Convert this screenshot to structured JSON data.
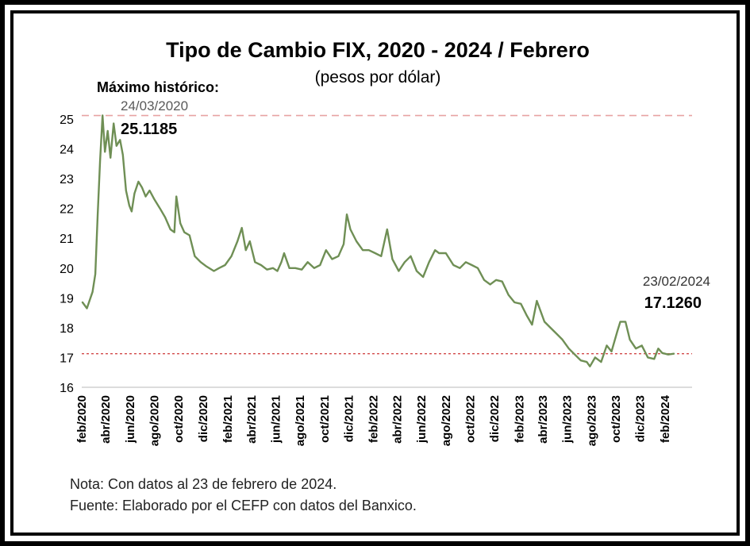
{
  "colors": {
    "frame": "#000000",
    "series": "#6f8f55",
    "max_line": "#e8a3a3",
    "current_line": "#d24a4a",
    "axis": "#b8b8b8",
    "text": "#000000",
    "date_text": "#5a5a5a"
  },
  "chart_data": {
    "type": "line",
    "title": "Tipo de Cambio FIX, 2020 - 2024 / Febrero",
    "subtitle": "(pesos por dólar)",
    "ylim": [
      16,
      25
    ],
    "y_ticks": [
      "16",
      "17",
      "18",
      "19",
      "20",
      "21",
      "22",
      "23",
      "24",
      "25"
    ],
    "x_range": [
      "2020-02-01",
      "2024-02-29"
    ],
    "x_ticks": [
      {
        "date": "2020-02-01",
        "label": "feb/2020"
      },
      {
        "date": "2020-04-01",
        "label": "abr/2020"
      },
      {
        "date": "2020-06-01",
        "label": "jun/2020"
      },
      {
        "date": "2020-08-01",
        "label": "ago/2020"
      },
      {
        "date": "2020-10-01",
        "label": "oct/2020"
      },
      {
        "date": "2020-12-01",
        "label": "dic/2020"
      },
      {
        "date": "2021-02-01",
        "label": "feb/2021"
      },
      {
        "date": "2021-04-01",
        "label": "abr/2021"
      },
      {
        "date": "2021-06-01",
        "label": "jun/2021"
      },
      {
        "date": "2021-08-01",
        "label": "ago/2021"
      },
      {
        "date": "2021-10-01",
        "label": "oct/2021"
      },
      {
        "date": "2021-12-01",
        "label": "dic/2021"
      },
      {
        "date": "2022-02-01",
        "label": "feb/2022"
      },
      {
        "date": "2022-04-01",
        "label": "abr/2022"
      },
      {
        "date": "2022-06-01",
        "label": "jun/2022"
      },
      {
        "date": "2022-08-01",
        "label": "ago/2022"
      },
      {
        "date": "2022-10-01",
        "label": "oct/2022"
      },
      {
        "date": "2022-12-01",
        "label": "dic/2022"
      },
      {
        "date": "2023-02-01",
        "label": "feb/2023"
      },
      {
        "date": "2023-04-01",
        "label": "abr/2023"
      },
      {
        "date": "2023-06-01",
        "label": "jun/2023"
      },
      {
        "date": "2023-08-01",
        "label": "ago/2023"
      },
      {
        "date": "2023-10-01",
        "label": "oct/2023"
      },
      {
        "date": "2023-12-01",
        "label": "dic/2023"
      },
      {
        "date": "2024-02-01",
        "label": "feb/2024"
      }
    ],
    "grid": false,
    "series": [
      {
        "points": [
          [
            "2020-02-03",
            18.85
          ],
          [
            "2020-02-14",
            18.65
          ],
          [
            "2020-02-28",
            19.2
          ],
          [
            "2020-03-06",
            19.8
          ],
          [
            "2020-03-12",
            21.8
          ],
          [
            "2020-03-18",
            23.6
          ],
          [
            "2020-03-24",
            25.1185
          ],
          [
            "2020-03-30",
            23.9
          ],
          [
            "2020-04-06",
            24.6
          ],
          [
            "2020-04-13",
            23.7
          ],
          [
            "2020-04-21",
            24.85
          ],
          [
            "2020-04-28",
            24.1
          ],
          [
            "2020-05-07",
            24.3
          ],
          [
            "2020-05-14",
            23.8
          ],
          [
            "2020-05-22",
            22.6
          ],
          [
            "2020-05-30",
            22.1
          ],
          [
            "2020-06-05",
            21.9
          ],
          [
            "2020-06-12",
            22.5
          ],
          [
            "2020-06-22",
            22.9
          ],
          [
            "2020-07-01",
            22.7
          ],
          [
            "2020-07-10",
            22.4
          ],
          [
            "2020-07-20",
            22.6
          ],
          [
            "2020-08-01",
            22.3
          ],
          [
            "2020-08-15",
            22.0
          ],
          [
            "2020-08-28",
            21.7
          ],
          [
            "2020-09-10",
            21.3
          ],
          [
            "2020-09-20",
            21.2
          ],
          [
            "2020-09-25",
            22.4
          ],
          [
            "2020-10-05",
            21.5
          ],
          [
            "2020-10-15",
            21.2
          ],
          [
            "2020-10-28",
            21.1
          ],
          [
            "2020-11-10",
            20.4
          ],
          [
            "2020-11-25",
            20.2
          ],
          [
            "2020-12-10",
            20.05
          ],
          [
            "2020-12-28",
            19.9
          ],
          [
            "2021-01-10",
            20.0
          ],
          [
            "2021-01-25",
            20.1
          ],
          [
            "2021-02-10",
            20.4
          ],
          [
            "2021-02-25",
            20.9
          ],
          [
            "2021-03-08",
            21.35
          ],
          [
            "2021-03-18",
            20.6
          ],
          [
            "2021-03-28",
            20.9
          ],
          [
            "2021-04-10",
            20.2
          ],
          [
            "2021-04-25",
            20.1
          ],
          [
            "2021-05-10",
            19.95
          ],
          [
            "2021-05-25",
            20.0
          ],
          [
            "2021-06-05",
            19.9
          ],
          [
            "2021-06-15",
            20.2
          ],
          [
            "2021-06-22",
            20.5
          ],
          [
            "2021-07-05",
            20.0
          ],
          [
            "2021-07-20",
            20.0
          ],
          [
            "2021-08-05",
            19.95
          ],
          [
            "2021-08-20",
            20.2
          ],
          [
            "2021-09-05",
            20.0
          ],
          [
            "2021-09-20",
            20.1
          ],
          [
            "2021-10-05",
            20.6
          ],
          [
            "2021-10-20",
            20.3
          ],
          [
            "2021-11-05",
            20.4
          ],
          [
            "2021-11-18",
            20.8
          ],
          [
            "2021-11-26",
            21.8
          ],
          [
            "2021-12-05",
            21.3
          ],
          [
            "2021-12-20",
            20.9
          ],
          [
            "2022-01-05",
            20.6
          ],
          [
            "2022-01-20",
            20.6
          ],
          [
            "2022-02-05",
            20.5
          ],
          [
            "2022-02-20",
            20.4
          ],
          [
            "2022-03-07",
            21.3
          ],
          [
            "2022-03-20",
            20.3
          ],
          [
            "2022-04-05",
            19.9
          ],
          [
            "2022-04-20",
            20.2
          ],
          [
            "2022-05-05",
            20.4
          ],
          [
            "2022-05-20",
            19.9
          ],
          [
            "2022-06-05",
            19.7
          ],
          [
            "2022-06-20",
            20.2
          ],
          [
            "2022-07-05",
            20.6
          ],
          [
            "2022-07-15",
            20.5
          ],
          [
            "2022-08-01",
            20.5
          ],
          [
            "2022-08-20",
            20.1
          ],
          [
            "2022-09-05",
            20.0
          ],
          [
            "2022-09-20",
            20.2
          ],
          [
            "2022-10-05",
            20.1
          ],
          [
            "2022-10-20",
            20.0
          ],
          [
            "2022-11-05",
            19.6
          ],
          [
            "2022-11-20",
            19.45
          ],
          [
            "2022-12-05",
            19.6
          ],
          [
            "2022-12-20",
            19.55
          ],
          [
            "2023-01-05",
            19.1
          ],
          [
            "2023-01-20",
            18.85
          ],
          [
            "2023-02-05",
            18.8
          ],
          [
            "2023-02-20",
            18.4
          ],
          [
            "2023-03-05",
            18.1
          ],
          [
            "2023-03-17",
            18.9
          ],
          [
            "2023-04-05",
            18.2
          ],
          [
            "2023-04-20",
            18.0
          ],
          [
            "2023-05-05",
            17.8
          ],
          [
            "2023-05-20",
            17.6
          ],
          [
            "2023-06-05",
            17.3
          ],
          [
            "2023-06-20",
            17.1
          ],
          [
            "2023-07-05",
            16.9
          ],
          [
            "2023-07-20",
            16.85
          ],
          [
            "2023-07-28",
            16.7
          ],
          [
            "2023-08-10",
            17.0
          ],
          [
            "2023-08-25",
            16.85
          ],
          [
            "2023-09-08",
            17.4
          ],
          [
            "2023-09-20",
            17.2
          ],
          [
            "2023-10-05",
            17.9
          ],
          [
            "2023-10-12",
            18.2
          ],
          [
            "2023-10-25",
            18.2
          ],
          [
            "2023-11-05",
            17.6
          ],
          [
            "2023-11-20",
            17.3
          ],
          [
            "2023-12-05",
            17.4
          ],
          [
            "2023-12-20",
            17.0
          ],
          [
            "2024-01-05",
            16.95
          ],
          [
            "2024-01-15",
            17.3
          ],
          [
            "2024-01-25",
            17.15
          ],
          [
            "2024-02-09",
            17.1
          ],
          [
            "2024-02-23",
            17.126
          ]
        ]
      }
    ],
    "reference_lines": [
      {
        "value": 25.1185,
        "style": "dashed"
      },
      {
        "value": 17.126,
        "style": "dotted"
      }
    ],
    "annotations": {
      "max_label": "Máximo histórico:",
      "max_date": "24/03/2020",
      "max_value": "25.1185",
      "last_date": "23/02/2024",
      "last_value": "17.1260"
    }
  },
  "footer": {
    "nota": "Nota: Con datos al 23 de febrero de 2024.",
    "fuente": "Fuente: Elaborado por el CEFP con datos del Banxico."
  }
}
